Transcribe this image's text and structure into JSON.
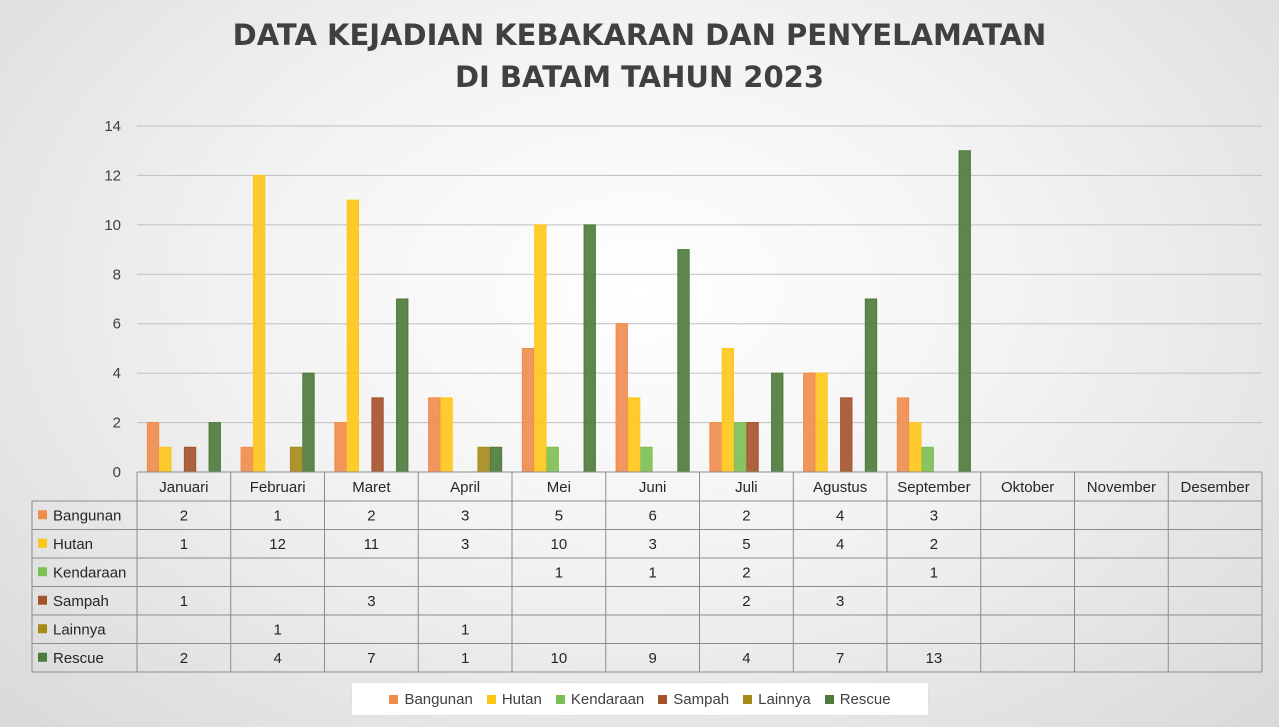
{
  "chart_data": {
    "type": "bar",
    "title": [
      "DATA KEJADIAN KEBAKARAN DAN PENYELAMATAN",
      "DI BATAM TAHUN 2023"
    ],
    "categories": [
      "Januari",
      "Februari",
      "Maret",
      "April",
      "Mei",
      "Juni",
      "Juli",
      "Agustus",
      "September",
      "Oktober",
      "November",
      "Desember"
    ],
    "ylim": [
      0,
      14
    ],
    "yticks": [
      0,
      2,
      4,
      6,
      8,
      10,
      12,
      14
    ],
    "grid": true,
    "legend": "bottom",
    "data_table": true,
    "series": [
      {
        "name": "Bangunan",
        "color": "#f08c4c",
        "values": [
          2,
          1,
          2,
          3,
          5,
          6,
          2,
          4,
          3,
          null,
          null,
          null
        ]
      },
      {
        "name": "Hutan",
        "color": "#ffc61a",
        "values": [
          1,
          12,
          11,
          3,
          10,
          3,
          5,
          4,
          2,
          null,
          null,
          null
        ]
      },
      {
        "name": "Kendaraan",
        "color": "#7cbf52",
        "values": [
          null,
          null,
          null,
          null,
          1,
          1,
          2,
          null,
          1,
          null,
          null,
          null
        ]
      },
      {
        "name": "Sampah",
        "color": "#a5522b",
        "values": [
          1,
          null,
          3,
          null,
          null,
          null,
          2,
          3,
          null,
          null,
          null,
          null
        ]
      },
      {
        "name": "Lainnya",
        "color": "#a68a16",
        "values": [
          null,
          1,
          null,
          1,
          null,
          null,
          null,
          null,
          null,
          null,
          null,
          null
        ]
      },
      {
        "name": "Rescue",
        "color": "#4d7a3a",
        "values": [
          2,
          4,
          7,
          1,
          10,
          9,
          4,
          7,
          13,
          null,
          null,
          null
        ]
      }
    ]
  }
}
